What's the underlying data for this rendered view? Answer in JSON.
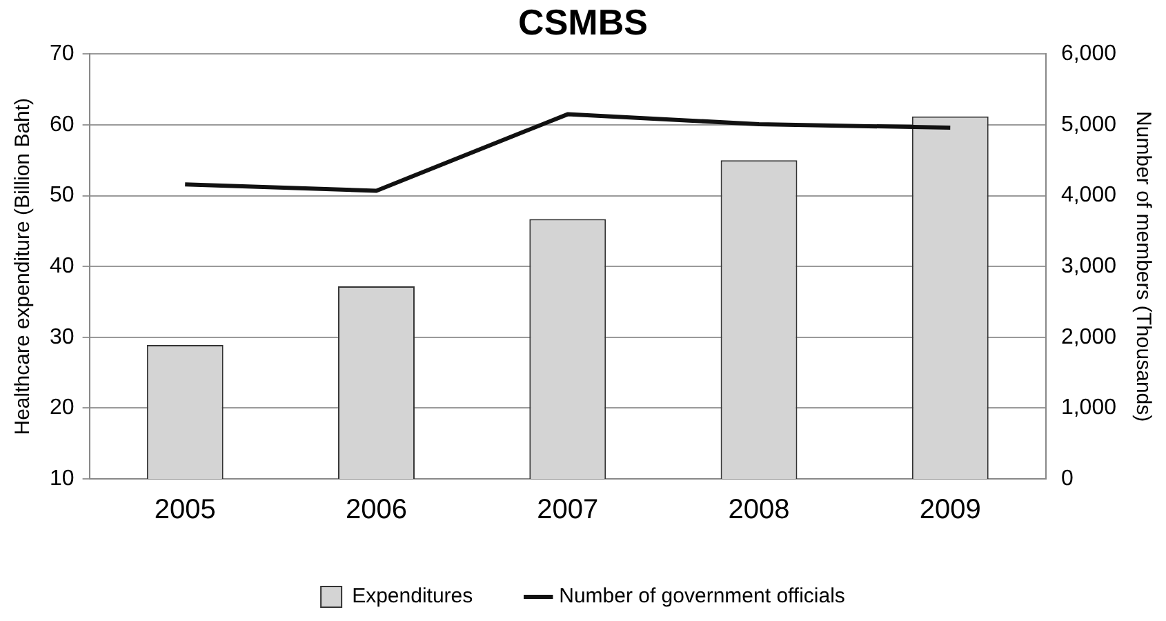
{
  "chart_data": {
    "type": "bar",
    "title": "CSMBS",
    "categories": [
      "2005",
      "2006",
      "2007",
      "2008",
      "2009"
    ],
    "series": [
      {
        "name": "Expenditures",
        "color": "#d4d4d4",
        "values": [
          28.9,
          37.2,
          46.7,
          55.0,
          61.2
        ]
      },
      {
        "name": "Number of government officials",
        "type": "line",
        "axis": "y2",
        "color": "#111111",
        "values": [
          4160,
          4070,
          5150,
          5010,
          4960
        ]
      }
    ],
    "ylabel": "Healthcare expenditure (Billion Baht)",
    "y2label": "Number of members (Thousands)",
    "ylim": [
      10,
      70
    ],
    "yticks": [
      10,
      20,
      30,
      40,
      50,
      60,
      70
    ],
    "y2lim": [
      0,
      6000
    ],
    "y2ticks": [
      {
        "value": 0,
        "label": "0"
      },
      {
        "value": 1000,
        "label": "1,000"
      },
      {
        "value": 2000,
        "label": "2,000"
      },
      {
        "value": 3000,
        "label": "3,000"
      },
      {
        "value": 4000,
        "label": "4,000"
      },
      {
        "value": 5000,
        "label": "5,000"
      },
      {
        "value": 6000,
        "label": "6,000"
      }
    ],
    "grid": "y",
    "legend": "bottom",
    "marker": "none"
  }
}
